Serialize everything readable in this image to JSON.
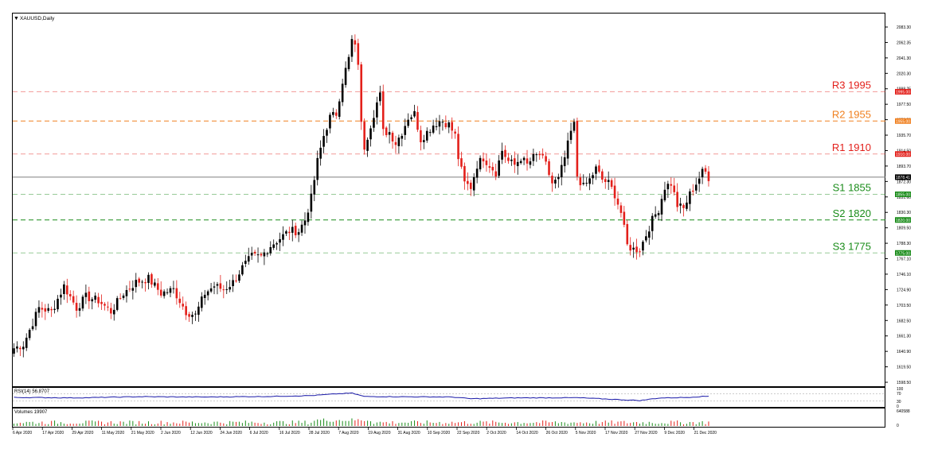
{
  "chart_title": "XAUUSD,Daily",
  "colors": {
    "bull": "#000000",
    "bear": "#e3201b",
    "resistance": "#e3201b",
    "r2": "#f08020",
    "support": "#1a8c1a",
    "rsi": "#1a1aa8",
    "current": "#7f7f7f"
  },
  "chart_data": {
    "type": "candlestick",
    "title": "XAUUSD,Daily",
    "price_axis": {
      "range": [
        1598.5,
        2083.3
      ],
      "ticks": [
        "2083.30",
        "2062.35",
        "2041.30",
        "2020.30",
        "1998.25",
        "1977.50",
        "1956.50",
        "1935.70",
        "1914.50",
        "1893.70",
        "1872.30",
        "1851.60",
        "1830.30",
        "1809.50",
        "1788.30",
        "1767.10",
        "1746.10",
        "1724.90",
        "1703.50",
        "1682.50",
        "1661.30",
        "1640.90",
        "1619.50",
        "1598.50"
      ],
      "current_price": "1878.41"
    },
    "dates": [
      "6 Apr 2020",
      "17 Apr 2020",
      "29 Apr 2020",
      "11 May 2020",
      "21 May 2020",
      "2 Jun 2020",
      "12 Jun 2020",
      "24 Jun 2020",
      "6 Jul 2020",
      "16 Jul 2020",
      "28 Jul 2020",
      "7 Aug 2020",
      "19 Aug 2020",
      "31 Aug 2020",
      "10 Sep 2020",
      "22 Sep 2020",
      "2 Oct 2020",
      "14 Oct 2020",
      "26 Oct 2020",
      "5 Nov 2020",
      "17 Nov 2020",
      "27 Nov 2020",
      "9 Dec 2020",
      "21 Dec 2020"
    ],
    "levels": [
      {
        "label": "R3 1995",
        "value": 1995,
        "tag": "1995.00",
        "kind": "resistance"
      },
      {
        "label": "R2 1955",
        "value": 1955,
        "tag": "1955.00",
        "kind": "r2"
      },
      {
        "label": "R1 1910",
        "value": 1910,
        "tag": "1910.00",
        "kind": "resistance"
      },
      {
        "label": "S1 1855",
        "value": 1855,
        "tag": "1855.00",
        "kind": "support"
      },
      {
        "label": "S2 1820",
        "value": 1820,
        "tag": "1820.00",
        "kind": "support"
      },
      {
        "label": "S3 1775",
        "value": 1775,
        "tag": "1775.00",
        "kind": "support"
      }
    ],
    "close_anchors": [
      [
        0,
        1645
      ],
      [
        3,
        1650
      ],
      [
        8,
        1700
      ],
      [
        12,
        1695
      ],
      [
        16,
        1730
      ],
      [
        20,
        1700
      ],
      [
        23,
        1715
      ],
      [
        27,
        1710
      ],
      [
        31,
        1695
      ],
      [
        35,
        1720
      ],
      [
        39,
        1735
      ],
      [
        43,
        1740
      ],
      [
        47,
        1720
      ],
      [
        51,
        1725
      ],
      [
        55,
        1695
      ],
      [
        58,
        1690
      ],
      [
        61,
        1720
      ],
      [
        64,
        1730
      ],
      [
        67,
        1725
      ],
      [
        70,
        1735
      ],
      [
        73,
        1755
      ],
      [
        76,
        1770
      ],
      [
        79,
        1770
      ],
      [
        82,
        1785
      ],
      [
        85,
        1795
      ],
      [
        88,
        1805
      ],
      [
        91,
        1805
      ],
      [
        93,
        1820
      ],
      [
        95,
        1850
      ],
      [
        97,
        1900
      ],
      [
        99,
        1935
      ],
      [
        101,
        1960
      ],
      [
        103,
        1965
      ],
      [
        105,
        2010
      ],
      [
        107,
        2040
      ],
      [
        108,
        2065
      ],
      [
        109,
        2055
      ],
      [
        110,
        2035
      ],
      [
        111,
        1950
      ],
      [
        112,
        1920
      ],
      [
        114,
        1950
      ],
      [
        116,
        1980
      ],
      [
        117,
        1990
      ],
      [
        118,
        1940
      ],
      [
        120,
        1940
      ],
      [
        122,
        1925
      ],
      [
        124,
        1940
      ],
      [
        126,
        1960
      ],
      [
        128,
        1965
      ],
      [
        130,
        1930
      ],
      [
        132,
        1940
      ],
      [
        134,
        1950
      ],
      [
        136,
        1955
      ],
      [
        137,
        1955
      ],
      [
        139,
        1950
      ],
      [
        141,
        1935
      ],
      [
        142,
        1905
      ],
      [
        144,
        1870
      ],
      [
        146,
        1865
      ],
      [
        148,
        1895
      ],
      [
        150,
        1905
      ],
      [
        152,
        1895
      ],
      [
        154,
        1885
      ],
      [
        156,
        1915
      ],
      [
        158,
        1900
      ],
      [
        160,
        1895
      ],
      [
        162,
        1905
      ],
      [
        164,
        1895
      ],
      [
        166,
        1905
      ],
      [
        168,
        1910
      ],
      [
        170,
        1895
      ],
      [
        172,
        1870
      ],
      [
        174,
        1875
      ],
      [
        176,
        1905
      ],
      [
        178,
        1940
      ],
      [
        179,
        1950
      ],
      [
        180,
        1880
      ],
      [
        182,
        1865
      ],
      [
        184,
        1875
      ],
      [
        186,
        1890
      ],
      [
        188,
        1875
      ],
      [
        190,
        1870
      ],
      [
        192,
        1855
      ],
      [
        194,
        1830
      ],
      [
        196,
        1785
      ],
      [
        198,
        1780
      ],
      [
        200,
        1780
      ],
      [
        202,
        1800
      ],
      [
        204,
        1820
      ],
      [
        206,
        1835
      ],
      [
        208,
        1865
      ],
      [
        210,
        1870
      ],
      [
        212,
        1840
      ],
      [
        214,
        1835
      ],
      [
        216,
        1855
      ],
      [
        218,
        1870
      ],
      [
        220,
        1885
      ],
      [
        221,
        1885
      ],
      [
        222,
        1878
      ]
    ],
    "rsi": {
      "label": "RSI(14) 56.8707",
      "scale": [
        "100",
        "70",
        "30",
        "0"
      ],
      "anchors": [
        [
          0,
          50
        ],
        [
          20,
          47
        ],
        [
          40,
          54
        ],
        [
          60,
          52
        ],
        [
          80,
          55
        ],
        [
          95,
          60
        ],
        [
          103,
          70
        ],
        [
          108,
          74
        ],
        [
          112,
          55
        ],
        [
          130,
          53
        ],
        [
          140,
          52
        ],
        [
          146,
          42
        ],
        [
          160,
          47
        ],
        [
          180,
          48
        ],
        [
          196,
          35
        ],
        [
          200,
          32
        ],
        [
          206,
          46
        ],
        [
          215,
          50
        ],
        [
          222,
          56.87
        ]
      ]
    },
    "volume": {
      "label": "Volumes 19907",
      "scale": [
        "640588",
        "0"
      ]
    }
  }
}
